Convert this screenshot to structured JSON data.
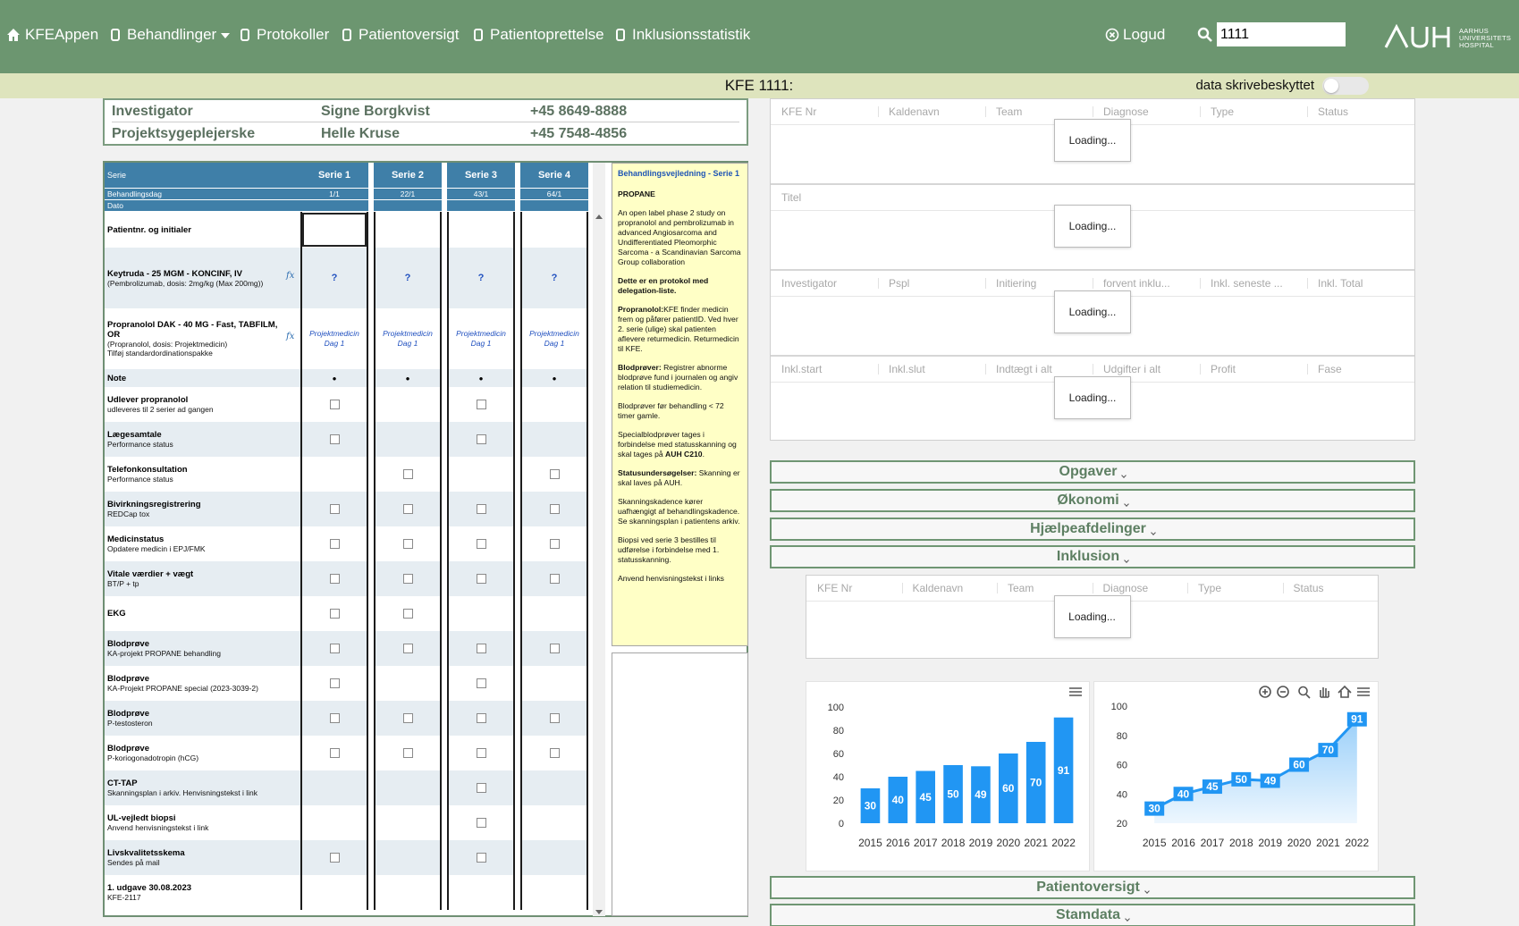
{
  "nav": {
    "items": [
      "KFEAppen",
      "Behandlinger",
      "Protokoller",
      "Patientoversigt",
      "Patientoprettelse",
      "Inklusionsstatistik"
    ],
    "logout": "Logud",
    "search": "1111",
    "logo": [
      "AARHUS",
      "UNIVERSITETS",
      "HOSPITAL"
    ]
  },
  "header": {
    "title": "KFE 1111:",
    "toggle": "data skrivebeskyttet"
  },
  "contacts": [
    [
      "Investigator",
      "Signe Borgkvist",
      "+45 8649-8888"
    ],
    [
      "Projektsygeplejerske",
      "Helle Kruse",
      "+45 7548-4856"
    ]
  ],
  "schedule": {
    "header_labels": [
      "Serie",
      "Behandlingsdag",
      "Dato"
    ],
    "series": [
      "Serie 1",
      "Serie 2",
      "Serie 3",
      "Serie 4"
    ],
    "days": [
      "1/1",
      "22/1",
      "43/1",
      "64/1"
    ],
    "rows": [
      {
        "title": "Patientnr. og initialer",
        "sub": [],
        "cells": [
          null,
          null,
          null,
          null
        ]
      },
      {
        "title": "Keytruda - 25 MGM - KONCINF, IV",
        "sub": [
          "(Pembrolizumab, dosis: 2mg/kg (Max 200mg))"
        ],
        "formula": "fx",
        "cells": [
          "?",
          "?",
          "?",
          "?"
        ]
      },
      {
        "title": "Propranolol DAK - 40 MG - Fast, TABFILM, OR",
        "sub": [
          "(Propranolol, dosis: Projektmedicin)",
          "Tilføj standardordinationspakke"
        ],
        "formula": "fx",
        "cells": [
          "Projektmedicin Dag 1",
          "Projektmedicin Dag 1",
          "Projektmedicin Dag 1",
          "Projektmedicin Dag 1"
        ]
      },
      {
        "title": "Note",
        "sub": [],
        "cells": [
          "•",
          "•",
          "•",
          "•"
        ]
      },
      {
        "title": "Udlever propranolol",
        "sub": [
          "udleveres til 2 serier ad gangen"
        ],
        "cells": [
          true,
          null,
          true,
          null
        ]
      },
      {
        "title": "Lægesamtale",
        "sub": [
          "Performance status"
        ],
        "cells": [
          true,
          null,
          true,
          null
        ]
      },
      {
        "title": "Telefonkonsultation",
        "sub": [
          "Performance status"
        ],
        "cells": [
          null,
          true,
          null,
          true
        ]
      },
      {
        "title": "Bivirkningsregistrering",
        "sub": [
          "REDCap tox"
        ],
        "cells": [
          true,
          true,
          true,
          true
        ]
      },
      {
        "title": "Medicinstatus",
        "sub": [
          "Opdatere medicin i EPJ/FMK"
        ],
        "cells": [
          true,
          true,
          true,
          true
        ]
      },
      {
        "title": "Vitale værdier + vægt",
        "sub": [
          "BT/P + tp"
        ],
        "cells": [
          true,
          true,
          true,
          true
        ]
      },
      {
        "title": "EKG",
        "sub": [],
        "cells": [
          true,
          true,
          null,
          null
        ]
      },
      {
        "title": "Blodprøve",
        "sub": [
          "KA-projekt PROPANE behandling"
        ],
        "cells": [
          true,
          true,
          true,
          true
        ]
      },
      {
        "title": "Blodprøve",
        "sub": [
          "KA-Projekt PROPANE special (2023-3039-2)"
        ],
        "cells": [
          true,
          null,
          true,
          null
        ]
      },
      {
        "title": "Blodprøve",
        "sub": [
          "P-testosteron"
        ],
        "cells": [
          true,
          true,
          true,
          true
        ]
      },
      {
        "title": "Blodprøve",
        "sub": [
          "P-koriogonadotropin (hCG)"
        ],
        "cells": [
          true,
          true,
          true,
          true
        ]
      },
      {
        "title": "CT-TAP",
        "sub": [
          "Skanningsplan i arkiv. Henvisningstekst i link"
        ],
        "cells": [
          null,
          null,
          true,
          null
        ]
      },
      {
        "title": "UL-vejledt biopsi",
        "sub": [
          "Anvend henvisningstekst i link"
        ],
        "cells": [
          null,
          null,
          true,
          null
        ]
      },
      {
        "title": "Livskvalitetsskema",
        "sub": [
          "Sendes på mail"
        ],
        "cells": [
          true,
          null,
          true,
          null
        ]
      },
      {
        "title": "1. udgave 30.08.2023",
        "sub": [
          "KFE-2117"
        ],
        "cells": [
          null,
          null,
          null,
          null
        ]
      }
    ]
  },
  "guide": {
    "title": "Behandlingsvejledning - Serie 1",
    "paragraphs": [
      [
        {
          "t": "PROPANE",
          "b": true
        }
      ],
      [
        {
          "t": "An open label phase 2 study on propranolol and pembrolizumab in advanced Angiosarcoma and Undifferentiated Pleomorphic Sarcoma - a Scandinavian Sarcoma Group collaboration",
          "b": false
        }
      ],
      [
        {
          "t": "Dette er en protokol med delegation-liste.",
          "b": true
        }
      ],
      [
        {
          "t": "Propranolol:",
          "b": true
        },
        {
          "t": "KFE finder medicin frem og påfører patientID. Ved hver 2. serie (ulige) skal patienten aflevere returmedicin. Returmedicin til KFE.",
          "b": false
        }
      ],
      [
        {
          "t": "Blodprøver:",
          "b": true
        },
        {
          "t": " Registrer abnorme blodprøve fund i journalen og angiv relation til studiemedicin.",
          "b": false
        }
      ],
      [
        {
          "t": "Blodprøver før behandling < 72 timer gamle.",
          "b": false
        }
      ],
      [
        {
          "t": "Specialblodprøver tages i forbindelse med statusskanning og skal tages på ",
          "b": false
        },
        {
          "t": "AUH C210",
          "b": true
        },
        {
          "t": ".",
          "b": false
        }
      ],
      [
        {
          "t": "Statusundersøgelser:",
          "b": true
        },
        {
          "t": " Skanning er skal laves på AUH.",
          "b": false
        }
      ],
      [
        {
          "t": "Skanningskadence kører uafhængigt af behandlingskadence. Se skanningsplan i patientens arkiv.",
          "b": false
        }
      ],
      [
        {
          "t": "Biopsi ved serie 3 bestilles til udførelse i forbindelse med 1. statusskanning.",
          "b": false
        }
      ],
      [
        {
          "t": "Anvend henvisningstekst i links",
          "b": false
        }
      ]
    ]
  },
  "grids": [
    {
      "columns": [
        "KFE Nr",
        "Kaldenavn",
        "Team",
        "Diagnose",
        "Type",
        "Status"
      ]
    },
    {
      "columns": [
        "Titel"
      ]
    },
    {
      "columns": [
        "Investigator",
        "Pspl",
        "Initiering",
        "forvent inklu...",
        "Inkl. seneste ...",
        "Inkl. Total"
      ]
    },
    {
      "columns": [
        "Inkl.start",
        "Inkl.slut",
        "Indtægt i alt",
        "Udgifter i alt",
        "Profit",
        "Fase"
      ]
    }
  ],
  "loading": "Loading...",
  "sections": [
    "Opgaver",
    "Økonomi",
    "Hjælpeafdelinger",
    "Inklusion"
  ],
  "inclusion_grid": {
    "columns": [
      "KFE Nr",
      "Kaldenavn",
      "Team",
      "Diagnose",
      "Type",
      "Status"
    ]
  },
  "chart_data": [
    {
      "type": "bar",
      "categories": [
        "2015",
        "2016",
        "2017",
        "2018",
        "2019",
        "2020",
        "2021",
        "2022"
      ],
      "values": [
        30,
        40,
        45,
        50,
        49,
        60,
        70,
        91
      ],
      "color": "#2196f3",
      "ylim": [
        0,
        100
      ],
      "yticks": [
        0,
        20,
        40,
        60,
        80,
        100
      ]
    },
    {
      "type": "line",
      "categories": [
        "2015",
        "2016",
        "2017",
        "2018",
        "2019",
        "2020",
        "2021",
        "2022"
      ],
      "values": [
        30,
        40,
        45,
        50,
        49,
        60,
        70,
        91
      ],
      "color": "#2196f3",
      "ylim": [
        20,
        100
      ],
      "yticks": [
        20,
        40,
        60,
        80,
        100
      ]
    }
  ],
  "sections_bottom": [
    "Patientoversigt",
    "Stamdata"
  ]
}
